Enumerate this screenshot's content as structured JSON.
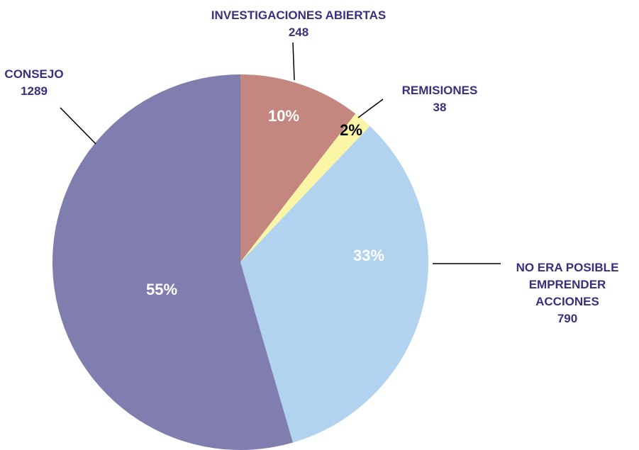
{
  "chart_data": {
    "type": "pie",
    "categories": [
      "INVESTIGACIONES ABIERTAS",
      "REMISIONES",
      "NO ERA POSIBLE EMPRENDER ACCIONES",
      "CONSEJO"
    ],
    "values": [
      248,
      38,
      790,
      1289
    ],
    "percent_labels": [
      "10%",
      "2%",
      "33%",
      "55%"
    ],
    "colors": [
      "#c4877f",
      "#fbf5a6",
      "#b1d3f0",
      "#807daf"
    ],
    "percent_label_colors": [
      "#ffffff",
      "#000000",
      "#ffffff",
      "#ffffff"
    ],
    "category_label_color": "#3b2f7d"
  }
}
